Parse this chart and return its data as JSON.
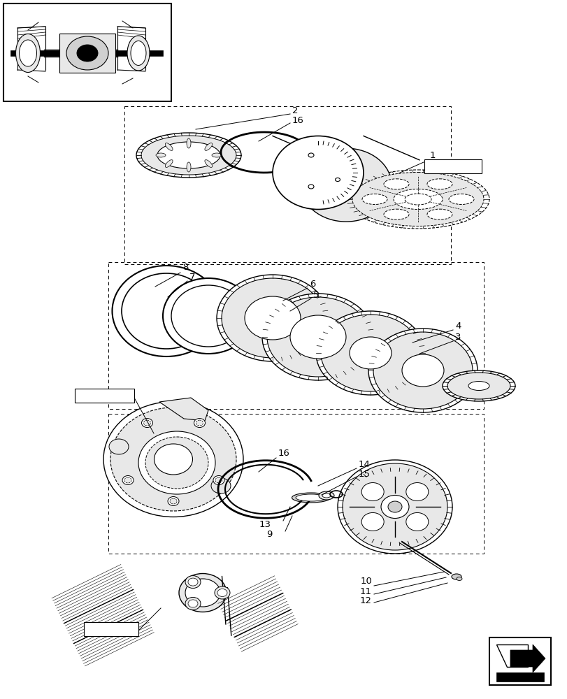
{
  "bg_color": "#ffffff",
  "line_color": "#000000",
  "figure_size": [
    8.12,
    10.0
  ],
  "dpi": 100,
  "gray_light": "#e8e8e8",
  "gray_mid": "#d0d0d0",
  "gray_dark": "#b0b0b0"
}
